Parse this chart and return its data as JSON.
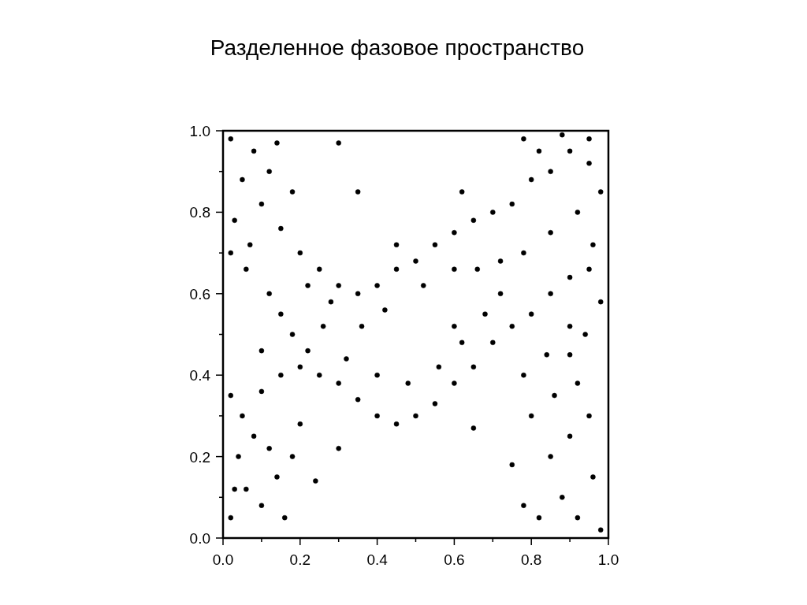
{
  "chart_data": {
    "type": "scatter",
    "title": "Разделенное фазовое пространство",
    "xlim": [
      0,
      1
    ],
    "ylim": [
      0,
      1
    ],
    "xticks": [
      {
        "value": 0,
        "label": "0.0"
      },
      {
        "value": 0.1,
        "label": null
      },
      {
        "value": 0.2,
        "label": "0.2"
      },
      {
        "value": 0.3,
        "label": null
      },
      {
        "value": 0.4,
        "label": "0.4"
      },
      {
        "value": 0.5,
        "label": null
      },
      {
        "value": 0.6,
        "label": "0.6"
      },
      {
        "value": 0.7,
        "label": null
      },
      {
        "value": 0.8,
        "label": "0.8"
      },
      {
        "value": 0.9,
        "label": null
      },
      {
        "value": 1,
        "label": "1.0"
      }
    ],
    "yticks": [
      {
        "value": 0,
        "label": "0.0"
      },
      {
        "value": 0.1,
        "label": null
      },
      {
        "value": 0.2,
        "label": "0.2"
      },
      {
        "value": 0.3,
        "label": null
      },
      {
        "value": 0.4,
        "label": "0.4"
      },
      {
        "value": 0.5,
        "label": null
      },
      {
        "value": 0.6,
        "label": "0.6"
      },
      {
        "value": 0.7,
        "label": null
      },
      {
        "value": 0.8,
        "label": "0.8"
      },
      {
        "value": 0.9,
        "label": null
      },
      {
        "value": 1,
        "label": "1.0"
      }
    ],
    "grid": false,
    "marker": "circle",
    "series": [
      {
        "color": "#000000",
        "x": [
          0.02,
          0.08,
          0.12,
          0.05,
          0.1,
          0.03,
          0.15,
          0.07,
          0.18,
          0.14,
          0.2,
          0.25,
          0.3,
          0.22,
          0.28,
          0.35,
          0.4,
          0.45,
          0.5,
          0.55,
          0.6,
          0.65,
          0.7,
          0.75,
          0.8,
          0.85,
          0.9,
          0.95,
          0.88,
          0.98,
          0.92,
          0.96,
          0.85,
          0.78,
          0.72,
          0.66,
          0.6,
          0.52,
          0.42,
          0.36,
          0.02,
          0.05,
          0.1,
          0.15,
          0.2,
          0.25,
          0.3,
          0.35,
          0.4,
          0.45,
          0.5,
          0.55,
          0.6,
          0.65,
          0.7,
          0.75,
          0.8,
          0.85,
          0.9,
          0.95,
          0.32,
          0.4,
          0.48,
          0.56,
          0.62,
          0.68,
          0.72,
          0.6,
          0.02,
          0.06,
          0.1,
          0.14,
          0.04,
          0.08,
          0.16,
          0.12,
          0.18,
          0.2,
          0.03,
          0.82,
          0.88,
          0.92,
          0.96,
          0.85,
          0.9,
          0.95,
          0.98,
          0.8,
          0.86,
          0.92,
          0.78,
          0.84,
          0.02,
          0.06,
          0.12,
          0.15,
          0.18,
          0.22,
          0.1,
          0.26,
          0.9,
          0.94,
          0.98,
          0.9,
          0.95,
          0.82,
          0.78,
          0.3,
          0.35,
          0.45,
          0.62,
          0.24,
          0.3,
          0.65,
          0.75,
          0.78
        ],
        "values": [
          0.98,
          0.95,
          0.9,
          0.88,
          0.82,
          0.78,
          0.76,
          0.72,
          0.85,
          0.97,
          0.7,
          0.66,
          0.62,
          0.62,
          0.58,
          0.6,
          0.62,
          0.66,
          0.68,
          0.72,
          0.75,
          0.78,
          0.8,
          0.82,
          0.88,
          0.9,
          0.95,
          0.98,
          0.99,
          0.85,
          0.8,
          0.72,
          0.75,
          0.7,
          0.68,
          0.66,
          0.66,
          0.62,
          0.56,
          0.52,
          0.35,
          0.3,
          0.36,
          0.4,
          0.42,
          0.4,
          0.38,
          0.34,
          0.3,
          0.28,
          0.3,
          0.33,
          0.38,
          0.42,
          0.48,
          0.52,
          0.55,
          0.6,
          0.64,
          0.66,
          0.44,
          0.4,
          0.38,
          0.42,
          0.48,
          0.55,
          0.6,
          0.52,
          0.05,
          0.12,
          0.08,
          0.15,
          0.2,
          0.25,
          0.05,
          0.22,
          0.2,
          0.28,
          0.12,
          0.05,
          0.1,
          0.05,
          0.15,
          0.2,
          0.25,
          0.3,
          0.02,
          0.3,
          0.35,
          0.38,
          0.4,
          0.45,
          0.7,
          0.66,
          0.6,
          0.55,
          0.5,
          0.46,
          0.46,
          0.52,
          0.45,
          0.5,
          0.58,
          0.52,
          0.92,
          0.95,
          0.98,
          0.97,
          0.85,
          0.72,
          0.85,
          0.14,
          0.22,
          0.27,
          0.18,
          0.08
        ]
      }
    ]
  }
}
